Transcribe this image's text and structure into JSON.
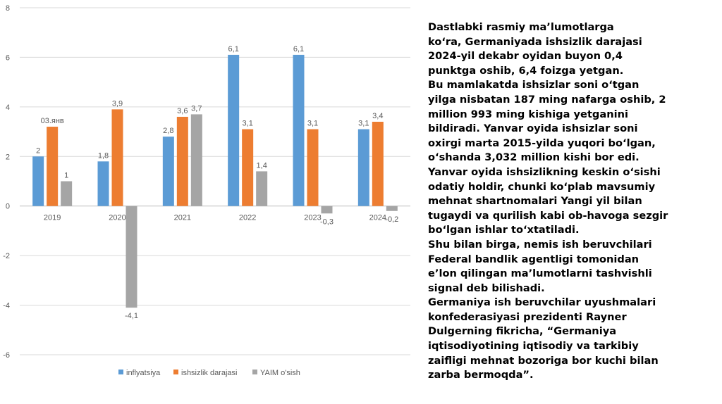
{
  "chart_data": {
    "type": "bar",
    "title": "",
    "xlabel": "",
    "ylabel": "",
    "ylim": [
      -6,
      8
    ],
    "yticks": [
      8,
      6,
      4,
      2,
      0,
      -2,
      -4,
      -6
    ],
    "grid": true,
    "legend_position": "bottom",
    "categories": [
      "2019",
      "2020",
      "2021",
      "2022",
      "2023",
      "2024"
    ],
    "series": [
      {
        "name": "inflyatsiya",
        "color": "#5B9BD5",
        "values": [
          2,
          1.8,
          2.8,
          6.1,
          6.1,
          3.1
        ],
        "labels": [
          "2",
          "1,8",
          "2,8",
          "6,1",
          "6,1",
          "3,1"
        ]
      },
      {
        "name": "ishsizlik darajasi",
        "color": "#ED7D31",
        "values": [
          3.2,
          3.9,
          3.6,
          3.1,
          3.1,
          3.4
        ],
        "labels": [
          "03.янв",
          "3,9",
          "3,6",
          "3,1",
          "3,1",
          "3,4"
        ]
      },
      {
        "name": "YAIM o'sish",
        "color": "#A5A5A5",
        "values": [
          1,
          -4.1,
          3.7,
          1.4,
          -0.3,
          -0.2
        ],
        "labels": [
          "1",
          "-4,1",
          "3,7",
          "1,4",
          "-0,3",
          "-0,2"
        ]
      }
    ]
  },
  "article": {
    "lines": [
      "Dastlabki rasmiy ma’lumotlarga",
      "ko‘ra, Germaniyada ishsizlik darajasi",
      "2024-yil dekabr oyidan buyon 0,4",
      "punktga oshib, 6,4 foizga yetgan.",
      "Bu mamlakatda ishsizlar soni o‘tgan",
      "yilga nisbatan 187 ming nafarga oshib, 2",
      "million 993 ming kishiga yetganini",
      "bildiradi. Yanvar oyida ishsizlar soni",
      "oxirgi marta 2015-yilda yuqori bo‘lgan,",
      "o‘shanda 3,032 million kishi bor edi.",
      "Yanvar oyida ishsizlikning keskin o‘sishi",
      "odatiy holdir, chunki ko‘plab mavsumiy",
      "mehnat shartnomalari Yangi yil bilan",
      "tugaydi va qurilish kabi ob-havoga sezgir",
      "bo‘lgan ishlar to‘xtatiladi.",
      "Shu bilan birga, nemis ish beruvchilari",
      "Federal bandlik agentligi tomonidan",
      "e’lon qilingan ma’lumotlarni tashvishli",
      "signal deb bilishadi.",
      "Germaniya ish beruvchilar uyushmalari",
      "konfederasiyasi prezidenti Rayner",
      "Dulgerning fikricha, “Germaniya",
      "iqtisodiyotining iqtisodiy va tarkibiy",
      "zaifligi mehnat bozoriga bor kuchi bilan",
      "zarba bermoqda”."
    ]
  }
}
